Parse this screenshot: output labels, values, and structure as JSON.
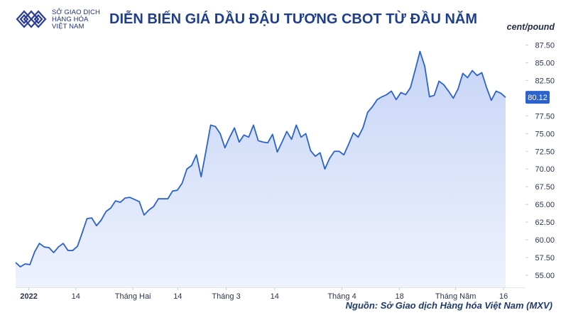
{
  "organization": {
    "name_lines": [
      "SỞ GIAO DỊCH",
      "HÀNG HÓA",
      "VIỆT NAM"
    ],
    "logo_icon": "diamond-lattice-logo-icon",
    "brand_color": "#2a3d9a"
  },
  "title": "DIỄN BIẾN GIÁ DẦU ĐẬU TƯƠNG CBOT TỪ ĐẦU NĂM",
  "unit_label": "cent/pound",
  "last_price_label": "80.12",
  "source": "Nguồn: Sở Giao dịch Hàng hóa Việt Nam (MXV)",
  "colors": {
    "line": "#2b62cc",
    "fill_top": "#c6d4f6",
    "fill_bottom": "#eef2fd",
    "price_badge": "#2b62cc"
  },
  "chart_data": {
    "type": "area",
    "x_tick_labels": [
      "2022",
      "14",
      "Tháng Hai",
      "14",
      "Tháng 3",
      "14",
      "Tháng 4",
      "18",
      "Tháng Năm",
      "16"
    ],
    "y_tick_labels": [
      "55.00",
      "57.50",
      "60.00",
      "62.50",
      "65.00",
      "67.50",
      "70.00",
      "72.50",
      "75.00",
      "77.50",
      "82.50",
      "85.00",
      "87.50"
    ],
    "ylim": [
      53.5,
      88.5
    ],
    "y_axis_side": "right",
    "grid": false,
    "series": [
      {
        "values": [
          56.8,
          56.2,
          56.6,
          56.5,
          58.3,
          59.5,
          59.0,
          58.9,
          58.2,
          59.0,
          59.5,
          58.5,
          58.5,
          59.1,
          61.0,
          63.0,
          63.1,
          62.0,
          62.8,
          64.0,
          64.5,
          65.5,
          65.3,
          65.9,
          66.0,
          65.7,
          65.4,
          63.5,
          64.2,
          64.7,
          65.8,
          65.8,
          65.8,
          66.9,
          67.0,
          68.0,
          70.0,
          70.5,
          72.0,
          68.9,
          72.5,
          76.2,
          76.0,
          75.0,
          73.0,
          74.5,
          75.8,
          73.8,
          74.8,
          74.5,
          76.2,
          74.0,
          73.8,
          73.7,
          74.9,
          72.4,
          73.8,
          75.3,
          74.2,
          76.2,
          74.5,
          75.0,
          72.6,
          71.8,
          72.3,
          70.0,
          71.5,
          72.5,
          72.5,
          72.0,
          73.5,
          75.1,
          74.5,
          75.8,
          78.0,
          78.8,
          79.8,
          80.2,
          80.5,
          81.0,
          79.8,
          80.8,
          80.5,
          81.5,
          84.0,
          86.6,
          84.5,
          80.2,
          80.4,
          82.4,
          81.9,
          81.0,
          80.0,
          81.3,
          83.5,
          82.9,
          83.9,
          83.2,
          83.6,
          81.5,
          79.7,
          81.0,
          80.7,
          80.12
        ]
      }
    ]
  }
}
